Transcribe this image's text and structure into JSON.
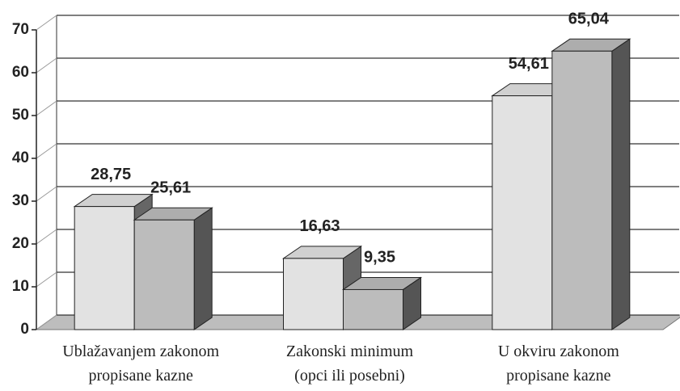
{
  "chart_data": {
    "type": "bar3d",
    "categories": [
      "Ublažavanjem zakonom\npropisane kazne",
      "Zakonski minimum\n(opci ili posebni)",
      "U okviru zakonom\npropisane kazne"
    ],
    "series": [
      {
        "color": "#e2e2e2",
        "values": [
          28.75,
          16.63,
          54.61
        ],
        "value_labels": [
          "28,75",
          "16,63",
          "54,61"
        ]
      },
      {
        "color": "#bcbcbc",
        "values": [
          25.61,
          9.35,
          65.04
        ],
        "value_labels": [
          "25,61",
          "9,35",
          "65,04"
        ]
      }
    ],
    "ylim": [
      0,
      70
    ],
    "yticks": [
      0,
      10,
      20,
      30,
      40,
      50,
      60,
      70
    ],
    "grid": true
  }
}
